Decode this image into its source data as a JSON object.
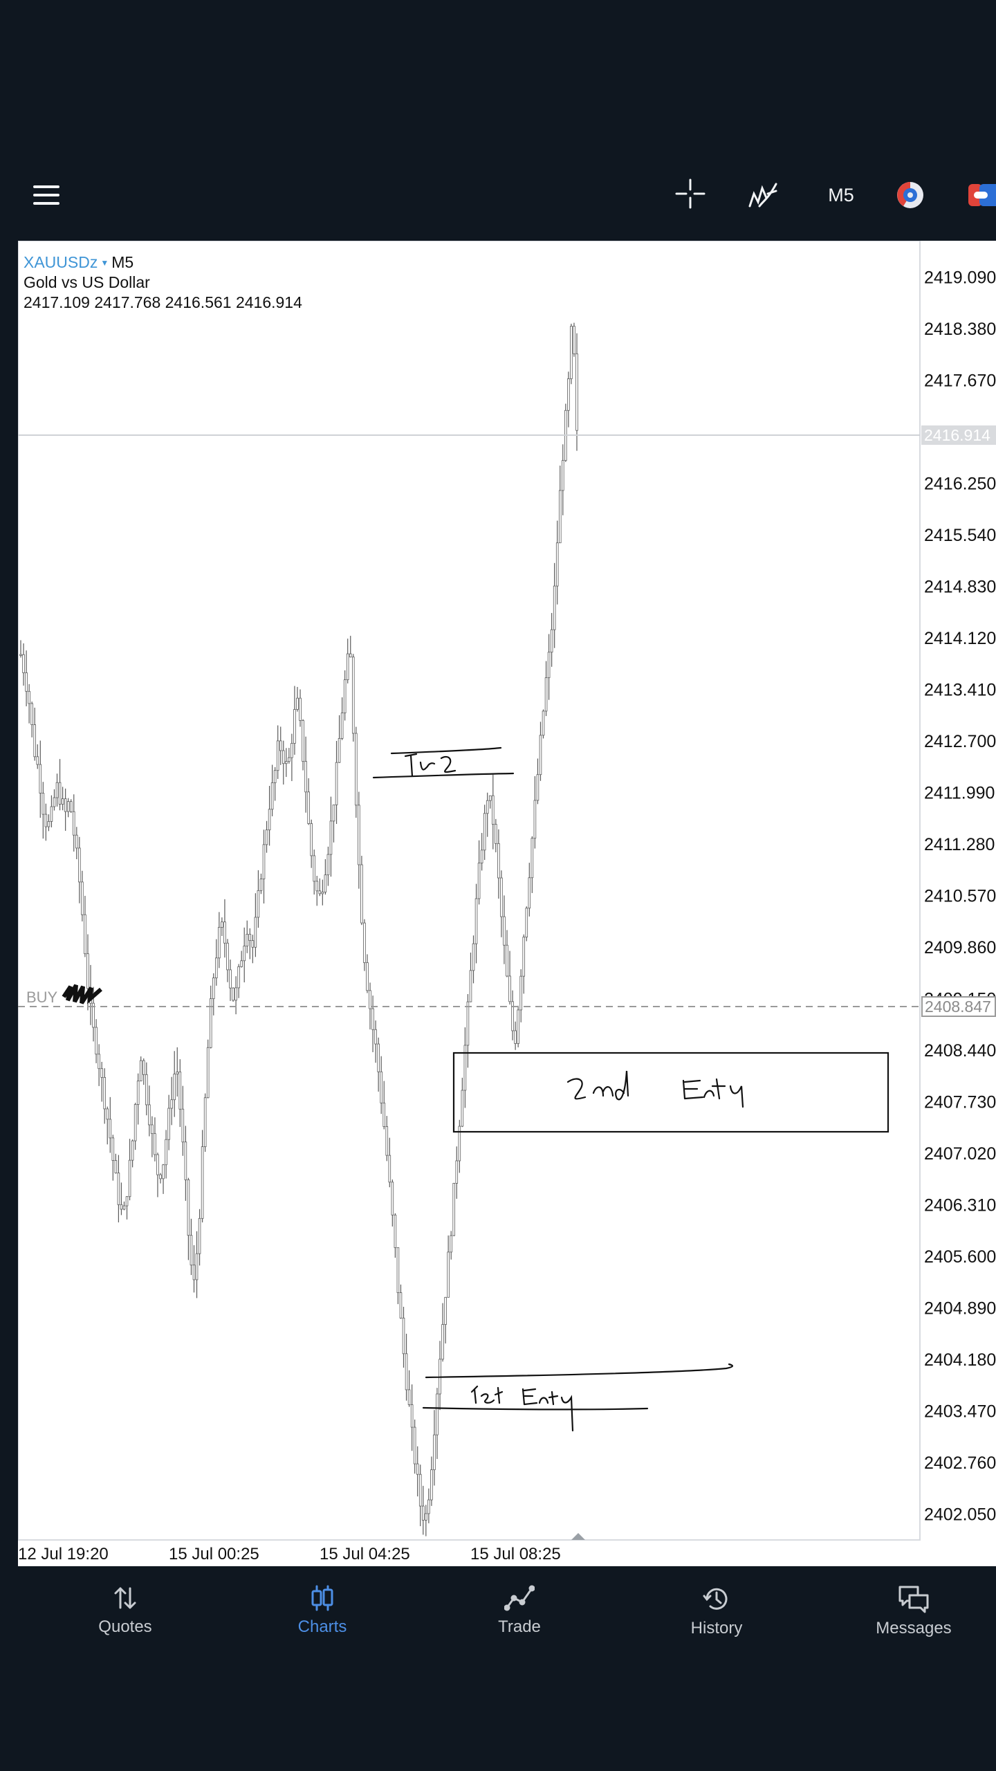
{
  "toolbar": {
    "menu_icon": "hamburger-menu-icon",
    "crosshair_icon": "crosshair-icon",
    "indicators_icon": "indicators-icon",
    "timeframe": "M5",
    "clock_icon": "clock-icon",
    "share_icon": "share-icon"
  },
  "chart": {
    "symbol": "XAUUSDz",
    "timeframe": "M5",
    "instrument_name": "Gold vs US Dollar",
    "ohlc": "2417.109 2417.768 2416.561 2416.914",
    "buy_label": "BUY",
    "buy_price": "2408.847",
    "current_price": "2416.914",
    "price_labels": [
      "2419.090",
      "2418.380",
      "2417.670",
      "2416.250",
      "2415.540",
      "2414.830",
      "2414.120",
      "2413.410",
      "2412.700",
      "2411.990",
      "2411.280",
      "2410.570",
      "2409.860",
      "2409.150",
      "2408.440",
      "2407.730",
      "2407.020",
      "2406.310",
      "2405.600",
      "2404.890",
      "2404.180",
      "2403.470",
      "2402.760",
      "2402.050"
    ],
    "time_labels": [
      "12 Jul 19:20",
      "15 Jul 00:25",
      "15 Jul 04:25",
      "15 Jul 08:25"
    ],
    "annotations": [
      "Tp2",
      "2nd Entry",
      "1st Entry"
    ],
    "colors": {
      "symbol": "#3f95d6",
      "candles": "#555555",
      "background": "#ffffff"
    }
  },
  "chart_data": {
    "type": "candlestick",
    "title": "Gold vs US Dollar",
    "symbol": "XAUUSDz",
    "timeframe": "M5",
    "ylim": [
      2401.7,
      2419.6
    ],
    "x_ticks": [
      "12 Jul 19:20",
      "15 Jul 00:25",
      "15 Jul 04:25",
      "15 Jul 08:25"
    ],
    "price_path": [
      2413.9,
      2413.6,
      2413.2,
      2412.6,
      2412.3,
      2411.8,
      2411.5,
      2411.7,
      2412.1,
      2411.9,
      2411.7,
      2411.9,
      2411.4,
      2410.9,
      2410.2,
      2409.4,
      2408.8,
      2408.5,
      2408.1,
      2407.7,
      2407.3,
      2406.8,
      2406.4,
      2406.1,
      2406.6,
      2407.1,
      2407.9,
      2408.4,
      2407.9,
      2407.5,
      2407.0,
      2406.7,
      2406.9,
      2407.4,
      2407.9,
      2408.3,
      2407.5,
      2406.6,
      2405.6,
      2405.2,
      2406.0,
      2407.2,
      2408.4,
      2409.3,
      2409.8,
      2410.2,
      2409.9,
      2409.4,
      2409.1,
      2409.5,
      2409.9,
      2410.2,
      2409.8,
      2410.3,
      2410.9,
      2411.4,
      2411.9,
      2412.2,
      2412.7,
      2412.5,
      2412.3,
      2412.8,
      2413.3,
      2412.8,
      2412.1,
      2411.3,
      2410.8,
      2410.5,
      2410.8,
      2411.2,
      2411.7,
      2412.3,
      2413.0,
      2413.6,
      2414.0,
      2412.5,
      2411.0,
      2409.9,
      2409.3,
      2408.8,
      2408.4,
      2407.8,
      2407.2,
      2406.5,
      2405.8,
      2405.0,
      2404.3,
      2403.7,
      2403.1,
      2402.6,
      2402.1,
      2402.0,
      2402.5,
      2403.3,
      2404.1,
      2404.8,
      2405.5,
      2406.2,
      2407.0,
      2407.8,
      2408.6,
      2409.4,
      2410.2,
      2410.9,
      2411.5,
      2412.0,
      2411.7,
      2411.1,
      2410.3,
      2409.6,
      2409.0,
      2408.5,
      2409.2,
      2410.0,
      2410.7,
      2411.4,
      2412.1,
      2412.8,
      2413.5,
      2414.0,
      2414.8,
      2415.9,
      2416.8,
      2417.5,
      2418.6,
      2416.9
    ],
    "horizontal_lines": [
      {
        "label": "BUY",
        "value": 2408.847,
        "style": "dashed"
      },
      {
        "label": "",
        "value": 2416.914,
        "style": "solid"
      }
    ],
    "annotations": [
      {
        "text": "Tp2",
        "price": 2412.2
      },
      {
        "text": "2nd Entry",
        "price_range": [
          2407.1,
          2408.2
        ]
      },
      {
        "text": "1st Entry",
        "price": 2403.4
      }
    ]
  },
  "bottom_nav": {
    "items": [
      {
        "label": "Quotes",
        "icon": "quotes-arrows-icon"
      },
      {
        "label": "Charts",
        "icon": "charts-candles-icon"
      },
      {
        "label": "Trade",
        "icon": "trade-line-icon"
      },
      {
        "label": "History",
        "icon": "history-clock-icon"
      },
      {
        "label": "Messages",
        "icon": "messages-bubbles-icon"
      }
    ],
    "active": "Charts",
    "colors": {
      "active": "#4d8fe6",
      "inactive": "#c8ccd1"
    }
  }
}
